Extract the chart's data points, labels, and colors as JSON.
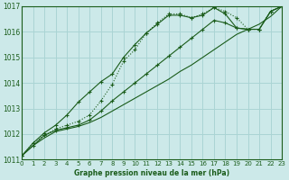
{
  "title": "Graphe pression niveau de la mer (hPa)",
  "bg_color": "#cce9e9",
  "grid_color": "#aad4d4",
  "line_color": "#1a5c1a",
  "xlim": [
    0,
    23
  ],
  "ylim": [
    1011,
    1017
  ],
  "xticks": [
    0,
    1,
    2,
    3,
    4,
    5,
    6,
    7,
    8,
    9,
    10,
    11,
    12,
    13,
    14,
    15,
    16,
    17,
    18,
    19,
    20,
    21,
    22,
    23
  ],
  "yticks": [
    1011,
    1012,
    1013,
    1014,
    1015,
    1016,
    1017
  ],
  "series1_x": [
    0,
    1,
    2,
    3,
    4,
    5,
    6,
    7,
    8,
    9,
    10,
    11,
    12,
    13,
    14,
    15,
    16,
    17,
    18,
    19,
    20,
    21,
    22,
    23
  ],
  "series1_y": [
    1011.15,
    1011.55,
    1011.85,
    1012.1,
    1012.2,
    1012.3,
    1012.45,
    1012.65,
    1012.9,
    1013.15,
    1013.4,
    1013.65,
    1013.9,
    1014.15,
    1014.45,
    1014.7,
    1015.0,
    1015.3,
    1015.6,
    1015.9,
    1016.1,
    1016.3,
    1016.6,
    1017.0
  ],
  "series2_x": [
    0,
    1,
    2,
    3,
    4,
    5,
    6,
    7,
    8,
    9,
    10,
    11,
    12,
    13,
    14,
    15,
    16,
    17,
    18,
    19,
    20,
    21,
    22,
    23
  ],
  "series2_y": [
    1011.15,
    1011.65,
    1011.95,
    1012.2,
    1012.35,
    1012.5,
    1012.75,
    1013.3,
    1013.95,
    1014.85,
    1015.3,
    1015.95,
    1016.35,
    1016.7,
    1016.7,
    1016.55,
    1016.7,
    1016.95,
    1016.8,
    1016.55,
    1016.1,
    1016.1,
    1016.8,
    1017.0
  ],
  "series3_x": [
    0,
    1,
    2,
    3,
    4,
    5,
    6,
    7,
    8,
    9,
    10,
    11,
    12,
    13,
    14,
    15,
    16,
    17,
    18,
    19,
    20,
    21,
    22,
    23
  ],
  "series3_y": [
    1011.15,
    1011.55,
    1011.95,
    1012.15,
    1012.25,
    1012.35,
    1012.55,
    1012.9,
    1013.3,
    1013.65,
    1014.0,
    1014.35,
    1014.7,
    1015.05,
    1015.4,
    1015.75,
    1016.1,
    1016.45,
    1016.35,
    1016.15,
    1016.1,
    1016.1,
    1016.8,
    1017.0
  ],
  "series4_x": [
    0,
    1,
    2,
    3,
    4,
    5,
    6,
    7,
    8,
    9,
    10,
    11,
    12,
    13,
    14,
    15,
    16,
    17,
    18,
    19,
    20,
    21,
    22,
    23
  ],
  "series4_y": [
    1011.15,
    1011.65,
    1012.05,
    1012.35,
    1012.75,
    1013.25,
    1013.65,
    1014.05,
    1014.35,
    1015.0,
    1015.5,
    1015.95,
    1016.3,
    1016.65,
    1016.65,
    1016.55,
    1016.65,
    1016.95,
    1016.7,
    1016.15,
    1016.1,
    1016.1,
    1016.8,
    1017.0
  ]
}
